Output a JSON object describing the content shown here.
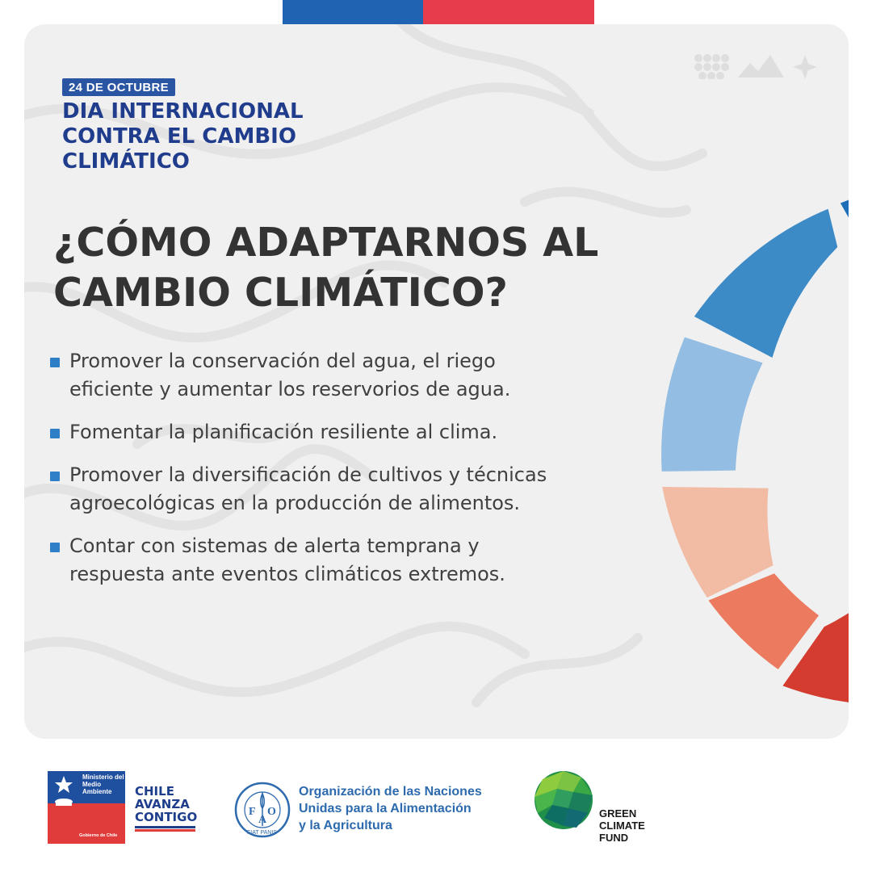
{
  "flag": {
    "colors": [
      "#1f63b3",
      "#e63c4b"
    ]
  },
  "card": {
    "date_badge": "24 DE OCTUBRE",
    "event_title": [
      "DIA INTERNACIONAL",
      "CONTRA EL CAMBIO",
      "CLIMÁTICO"
    ],
    "headline": [
      "¿CÓMO ADAPTARNOS AL",
      "CAMBIO CLIMÁTICO?"
    ],
    "bullets": [
      [
        "Promover la conservación del agua, el riego",
        "eficiente y aumentar los reservorios de agua."
      ],
      [
        "Fomentar la planificación resiliente al clima."
      ],
      [
        "Promover la diversificación de cultivos y técnicas",
        "agroecológicas en la producción de alimentos."
      ],
      [
        "Contar con sistemas de alerta temprana y",
        "respuesta ante eventos climáticos extremos."
      ]
    ],
    "decor_icons": [
      "dots-grid-icon",
      "mountains-icon",
      "sparkle-icon"
    ],
    "ring_colors": [
      "#1e6fb8",
      "#3c8ac6",
      "#93bde2",
      "#f2bba3",
      "#ec7a5e",
      "#d33c2e"
    ],
    "colors": {
      "background": "#f0f0f0",
      "accent_blue": "#2f7fc6",
      "title_navy": "#203c8c",
      "text": "#404040"
    }
  },
  "footer": {
    "ministry": {
      "name": [
        "Ministerio del",
        "Medio",
        "Ambiente"
      ],
      "government": "Gobierno de Chile"
    },
    "slogan": [
      "CHILE",
      "AVANZA",
      "CONTIGO"
    ],
    "fao": {
      "emblem_letters": [
        "F",
        "A",
        "O"
      ],
      "emblem_motto": "FIAT PANIS",
      "name": [
        "Organización de las Naciones",
        "Unidas para la Alimentación",
        "y la Agricultura"
      ]
    },
    "gcf": {
      "name": [
        "GREEN",
        "CLIMATE",
        "FUND"
      ]
    }
  }
}
